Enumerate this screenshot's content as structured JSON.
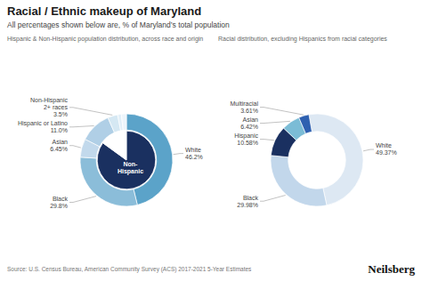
{
  "title": "Racial / Ethnic makeup of Maryland",
  "subtitle": "All percentages shown below are, % of Maryland’s total population",
  "source": "Source: U.S. Census Bureau, American Community Survey (ACS) 2017-2021 5-Year Estimates",
  "brand": "Neilsberg",
  "chart_data": [
    {
      "type": "pie",
      "title": "Hispanic & Non-Hispanic population distribution, across race and origin",
      "categories": [
        "White",
        "Black",
        "Asian",
        "Hispanic or Latino",
        "Non-Hispanic\n2+ races",
        null,
        null
      ],
      "values": [
        46.2,
        29.8,
        6.45,
        11.0,
        3.5,
        1.3,
        1.75
      ],
      "value_labels": [
        "46.2%",
        "29.8%",
        "6.45%",
        "11.0%",
        "3.5%",
        null,
        null
      ],
      "colors": [
        "#5ba3c9",
        "#8bbdd9",
        "#c2d9ec",
        "#b0cfe6",
        "#d5e8f3",
        "#e2eff8",
        "#edf5fb"
      ],
      "inner": {
        "categories": [
          "Non-\nHispanic",
          null
        ],
        "values": [
          85.0,
          15.0
        ],
        "colors": [
          "#1a3060",
          "#ffffff"
        ]
      }
    },
    {
      "type": "pie",
      "title": "Racial distribution, excluding Hispanics from racial categories",
      "categories": [
        "White",
        "Black",
        "Hispanic",
        "Asian",
        "Multiracial"
      ],
      "values": [
        49.37,
        29.98,
        10.58,
        6.42,
        3.61
      ],
      "value_labels": [
        "49.37%",
        "29.98%",
        "10.58%",
        "6.42%",
        "3.61%"
      ],
      "colors": [
        "#dde8f3",
        "#c2d7eb",
        "#1a3060",
        "#7bbcd6",
        "#2e60b0"
      ]
    }
  ]
}
